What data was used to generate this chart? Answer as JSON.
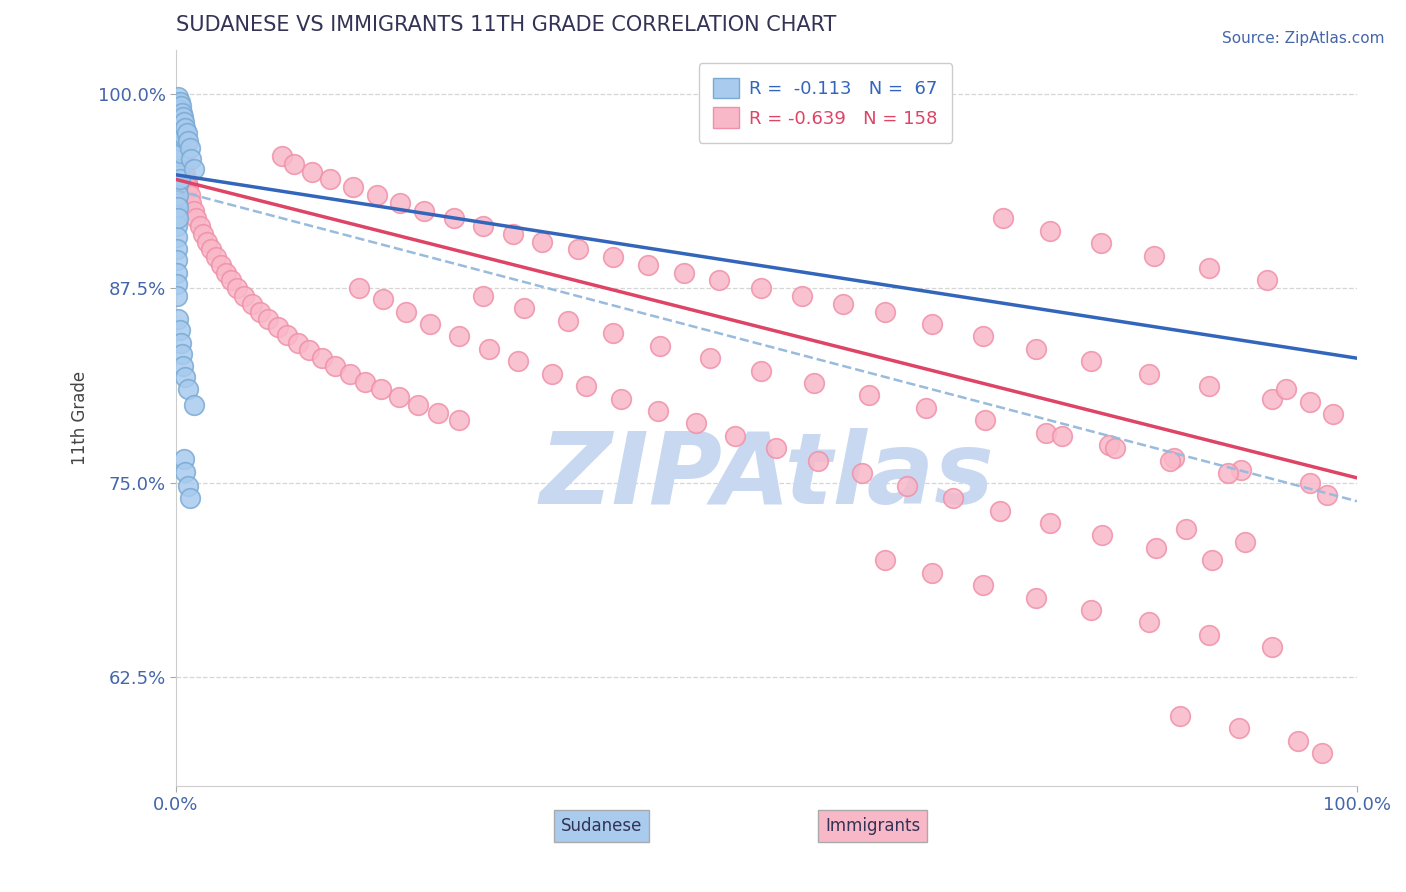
{
  "title": "SUDANESE VS IMMIGRANTS 11TH GRADE CORRELATION CHART",
  "source_text": "Source: ZipAtlas.com",
  "ylabel": "11th Grade",
  "watermark": "ZIPAtlas",
  "xmin": 0.0,
  "xmax": 1.0,
  "ymin": 0.555,
  "ymax": 1.028,
  "yticks": [
    0.625,
    0.75,
    0.875,
    1.0
  ],
  "ytick_labels": [
    "62.5%",
    "75.0%",
    "87.5%",
    "100.0%"
  ],
  "xticks": [
    0.0,
    1.0
  ],
  "xtick_labels": [
    "0.0%",
    "100.0%"
  ],
  "legend_r_sudanese": "-0.113",
  "legend_n_sudanese": "67",
  "legend_r_immigrants": "-0.639",
  "legend_n_immigrants": "158",
  "sudanese_fill_color": "#A8CBEE",
  "immigrants_fill_color": "#F9B8C8",
  "sudanese_edge_color": "#7AAAD4",
  "immigrants_edge_color": "#F090A8",
  "sudanese_line_color": "#3366BB",
  "immigrants_line_color": "#DD4466",
  "combined_line_color": "#99BBDD",
  "title_color": "#333355",
  "axis_label_color": "#4466AA",
  "tick_color": "#4466AA",
  "watermark_color": "#C8D8F0",
  "background_color": "#FFFFFF",
  "grid_color": "#CCCCCC",
  "figsize": [
    14.06,
    8.92
  ],
  "dpi": 100,
  "sud_line_x0": 0.0,
  "sud_line_x1": 1.0,
  "sud_line_y0": 0.948,
  "sud_line_y1": 0.83,
  "imm_line_x0": 0.0,
  "imm_line_x1": 1.0,
  "imm_line_y0": 0.945,
  "imm_line_y1": 0.753,
  "dash_line_x0": 0.0,
  "dash_line_x1": 1.0,
  "dash_line_y0": 0.938,
  "dash_line_y1": 0.738,
  "sudanese_points": [
    [
      0.001,
      0.995
    ],
    [
      0.001,
      0.988
    ],
    [
      0.001,
      0.982
    ],
    [
      0.001,
      0.975
    ],
    [
      0.001,
      0.968
    ],
    [
      0.001,
      0.96
    ],
    [
      0.001,
      0.953
    ],
    [
      0.001,
      0.945
    ],
    [
      0.001,
      0.938
    ],
    [
      0.001,
      0.93
    ],
    [
      0.001,
      0.922
    ],
    [
      0.001,
      0.915
    ],
    [
      0.001,
      0.908
    ],
    [
      0.001,
      0.9
    ],
    [
      0.001,
      0.893
    ],
    [
      0.001,
      0.885
    ],
    [
      0.001,
      0.878
    ],
    [
      0.001,
      0.87
    ],
    [
      0.002,
      0.998
    ],
    [
      0.002,
      0.993
    ],
    [
      0.002,
      0.987
    ],
    [
      0.002,
      0.98
    ],
    [
      0.002,
      0.972
    ],
    [
      0.002,
      0.965
    ],
    [
      0.002,
      0.957
    ],
    [
      0.002,
      0.95
    ],
    [
      0.002,
      0.942
    ],
    [
      0.002,
      0.935
    ],
    [
      0.002,
      0.927
    ],
    [
      0.002,
      0.92
    ],
    [
      0.003,
      0.995
    ],
    [
      0.003,
      0.99
    ],
    [
      0.003,
      0.983
    ],
    [
      0.003,
      0.975
    ],
    [
      0.003,
      0.968
    ],
    [
      0.003,
      0.96
    ],
    [
      0.003,
      0.952
    ],
    [
      0.003,
      0.945
    ],
    [
      0.004,
      0.992
    ],
    [
      0.004,
      0.985
    ],
    [
      0.004,
      0.977
    ],
    [
      0.004,
      0.97
    ],
    [
      0.004,
      0.962
    ],
    [
      0.005,
      0.988
    ],
    [
      0.005,
      0.98
    ],
    [
      0.005,
      0.972
    ],
    [
      0.006,
      0.985
    ],
    [
      0.006,
      0.977
    ],
    [
      0.007,
      0.982
    ],
    [
      0.007,
      0.973
    ],
    [
      0.008,
      0.978
    ],
    [
      0.009,
      0.975
    ],
    [
      0.01,
      0.97
    ],
    [
      0.012,
      0.965
    ],
    [
      0.013,
      0.958
    ],
    [
      0.015,
      0.952
    ],
    [
      0.002,
      0.855
    ],
    [
      0.003,
      0.848
    ],
    [
      0.004,
      0.84
    ],
    [
      0.005,
      0.833
    ],
    [
      0.006,
      0.825
    ],
    [
      0.008,
      0.818
    ],
    [
      0.01,
      0.81
    ],
    [
      0.015,
      0.8
    ],
    [
      0.007,
      0.765
    ],
    [
      0.008,
      0.757
    ],
    [
      0.01,
      0.748
    ],
    [
      0.012,
      0.74
    ]
  ],
  "immigrants_points": [
    [
      0.001,
      0.975
    ],
    [
      0.001,
      0.968
    ],
    [
      0.001,
      0.96
    ],
    [
      0.001,
      0.952
    ],
    [
      0.001,
      0.945
    ],
    [
      0.001,
      0.937
    ],
    [
      0.001,
      0.93
    ],
    [
      0.001,
      0.922
    ],
    [
      0.002,
      0.972
    ],
    [
      0.002,
      0.965
    ],
    [
      0.002,
      0.957
    ],
    [
      0.002,
      0.95
    ],
    [
      0.002,
      0.942
    ],
    [
      0.002,
      0.935
    ],
    [
      0.002,
      0.927
    ],
    [
      0.003,
      0.968
    ],
    [
      0.003,
      0.96
    ],
    [
      0.003,
      0.952
    ],
    [
      0.003,
      0.945
    ],
    [
      0.003,
      0.937
    ],
    [
      0.004,
      0.964
    ],
    [
      0.004,
      0.956
    ],
    [
      0.004,
      0.948
    ],
    [
      0.004,
      0.94
    ],
    [
      0.005,
      0.96
    ],
    [
      0.005,
      0.952
    ],
    [
      0.005,
      0.944
    ],
    [
      0.005,
      0.936
    ],
    [
      0.006,
      0.955
    ],
    [
      0.006,
      0.947
    ],
    [
      0.006,
      0.939
    ],
    [
      0.007,
      0.952
    ],
    [
      0.007,
      0.944
    ],
    [
      0.007,
      0.936
    ],
    [
      0.008,
      0.948
    ],
    [
      0.008,
      0.94
    ],
    [
      0.009,
      0.944
    ],
    [
      0.01,
      0.94
    ],
    [
      0.012,
      0.935
    ],
    [
      0.013,
      0.93
    ],
    [
      0.015,
      0.925
    ],
    [
      0.017,
      0.92
    ],
    [
      0.02,
      0.915
    ],
    [
      0.023,
      0.91
    ],
    [
      0.026,
      0.905
    ],
    [
      0.03,
      0.9
    ],
    [
      0.034,
      0.895
    ],
    [
      0.038,
      0.89
    ],
    [
      0.042,
      0.885
    ],
    [
      0.047,
      0.88
    ],
    [
      0.052,
      0.875
    ],
    [
      0.058,
      0.87
    ],
    [
      0.064,
      0.865
    ],
    [
      0.071,
      0.86
    ],
    [
      0.078,
      0.855
    ],
    [
      0.086,
      0.85
    ],
    [
      0.094,
      0.845
    ],
    [
      0.103,
      0.84
    ],
    [
      0.113,
      0.835
    ],
    [
      0.124,
      0.83
    ],
    [
      0.135,
      0.825
    ],
    [
      0.147,
      0.82
    ],
    [
      0.16,
      0.815
    ],
    [
      0.174,
      0.81
    ],
    [
      0.189,
      0.805
    ],
    [
      0.205,
      0.8
    ],
    [
      0.222,
      0.795
    ],
    [
      0.24,
      0.79
    ],
    [
      0.09,
      0.96
    ],
    [
      0.1,
      0.955
    ],
    [
      0.115,
      0.95
    ],
    [
      0.13,
      0.945
    ],
    [
      0.15,
      0.94
    ],
    [
      0.17,
      0.935
    ],
    [
      0.19,
      0.93
    ],
    [
      0.21,
      0.925
    ],
    [
      0.235,
      0.92
    ],
    [
      0.26,
      0.915
    ],
    [
      0.285,
      0.91
    ],
    [
      0.31,
      0.905
    ],
    [
      0.34,
      0.9
    ],
    [
      0.37,
      0.895
    ],
    [
      0.4,
      0.89
    ],
    [
      0.43,
      0.885
    ],
    [
      0.46,
      0.88
    ],
    [
      0.495,
      0.875
    ],
    [
      0.53,
      0.87
    ],
    [
      0.565,
      0.865
    ],
    [
      0.155,
      0.875
    ],
    [
      0.175,
      0.868
    ],
    [
      0.195,
      0.86
    ],
    [
      0.215,
      0.852
    ],
    [
      0.24,
      0.844
    ],
    [
      0.265,
      0.836
    ],
    [
      0.29,
      0.828
    ],
    [
      0.318,
      0.82
    ],
    [
      0.347,
      0.812
    ],
    [
      0.377,
      0.804
    ],
    [
      0.408,
      0.796
    ],
    [
      0.44,
      0.788
    ],
    [
      0.473,
      0.78
    ],
    [
      0.508,
      0.772
    ],
    [
      0.544,
      0.764
    ],
    [
      0.581,
      0.756
    ],
    [
      0.619,
      0.748
    ],
    [
      0.658,
      0.74
    ],
    [
      0.698,
      0.732
    ],
    [
      0.74,
      0.724
    ],
    [
      0.784,
      0.716
    ],
    [
      0.83,
      0.708
    ],
    [
      0.877,
      0.7
    ],
    [
      0.26,
      0.87
    ],
    [
      0.295,
      0.862
    ],
    [
      0.332,
      0.854
    ],
    [
      0.37,
      0.846
    ],
    [
      0.41,
      0.838
    ],
    [
      0.452,
      0.83
    ],
    [
      0.495,
      0.822
    ],
    [
      0.54,
      0.814
    ],
    [
      0.587,
      0.806
    ],
    [
      0.635,
      0.798
    ],
    [
      0.685,
      0.79
    ],
    [
      0.737,
      0.782
    ],
    [
      0.79,
      0.774
    ],
    [
      0.845,
      0.766
    ],
    [
      0.902,
      0.758
    ],
    [
      0.6,
      0.86
    ],
    [
      0.64,
      0.852
    ],
    [
      0.683,
      0.844
    ],
    [
      0.728,
      0.836
    ],
    [
      0.775,
      0.828
    ],
    [
      0.824,
      0.82
    ],
    [
      0.875,
      0.812
    ],
    [
      0.928,
      0.804
    ],
    [
      0.7,
      0.92
    ],
    [
      0.74,
      0.912
    ],
    [
      0.783,
      0.904
    ],
    [
      0.828,
      0.896
    ],
    [
      0.875,
      0.888
    ],
    [
      0.924,
      0.88
    ],
    [
      0.75,
      0.78
    ],
    [
      0.795,
      0.772
    ],
    [
      0.842,
      0.764
    ],
    [
      0.891,
      0.756
    ],
    [
      0.855,
      0.72
    ],
    [
      0.905,
      0.712
    ],
    [
      0.6,
      0.7
    ],
    [
      0.64,
      0.692
    ],
    [
      0.683,
      0.684
    ],
    [
      0.728,
      0.676
    ],
    [
      0.775,
      0.668
    ],
    [
      0.824,
      0.66
    ],
    [
      0.875,
      0.652
    ],
    [
      0.928,
      0.644
    ],
    [
      0.96,
      0.75
    ],
    [
      0.975,
      0.742
    ],
    [
      0.94,
      0.81
    ],
    [
      0.96,
      0.802
    ],
    [
      0.98,
      0.794
    ],
    [
      0.85,
      0.6
    ],
    [
      0.9,
      0.592
    ],
    [
      0.95,
      0.584
    ],
    [
      0.97,
      0.576
    ]
  ]
}
